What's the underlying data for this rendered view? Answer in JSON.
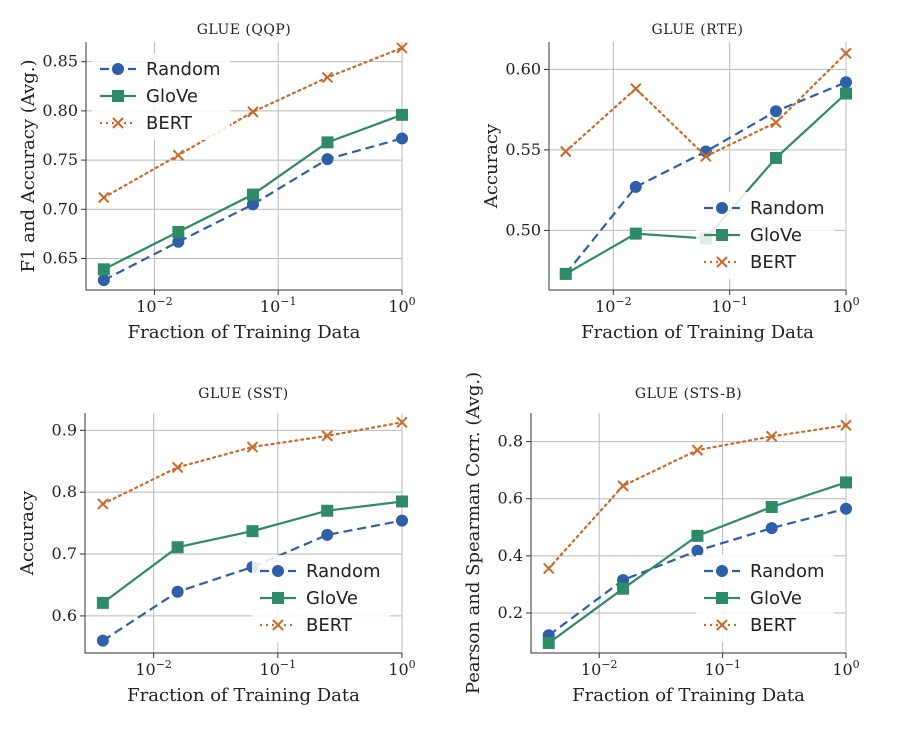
{
  "colors": {
    "random": "#2e5fa8",
    "glove": "#2e8b66",
    "bert": "#c96a2a",
    "grid": "#b9b9b9"
  },
  "chart_data": [
    {
      "type": "line",
      "title": "GLUE (QQP)",
      "xlabel": "Fraction of Training Data",
      "ylabel": "F1 and Accuracy (Avg.)",
      "xscale": "log",
      "xlim": [
        0.0028,
        1.0
      ],
      "ylim": [
        0.618,
        0.87
      ],
      "x": [
        0.0039,
        0.0156,
        0.0625,
        0.25,
        1.0
      ],
      "yticks": [
        0.65,
        0.7,
        0.75,
        0.8,
        0.85
      ],
      "ytick_labels": [
        "0.65",
        "0.70",
        "0.75",
        "0.80",
        "0.85"
      ],
      "xticks": [
        0.01,
        0.1,
        1
      ],
      "xtick_labels": [
        "10^-2",
        "10^-1",
        "10^0"
      ],
      "legend_position": "top-left",
      "series": [
        {
          "name": "Random",
          "key": "random",
          "values": [
            0.628,
            0.667,
            0.705,
            0.751,
            0.772
          ]
        },
        {
          "name": "GloVe",
          "key": "glove",
          "values": [
            0.639,
            0.677,
            0.715,
            0.768,
            0.796
          ]
        },
        {
          "name": "BERT",
          "key": "bert",
          "values": [
            0.712,
            0.755,
            0.799,
            0.834,
            0.864
          ]
        }
      ]
    },
    {
      "type": "line",
      "title": "GLUE (RTE)",
      "xlabel": "Fraction of Training Data",
      "ylabel": "Accuracy",
      "xscale": "log",
      "xlim": [
        0.0028,
        1.0
      ],
      "ylim": [
        0.463,
        0.617
      ],
      "x": [
        0.0039,
        0.0156,
        0.0625,
        0.25,
        1.0
      ],
      "yticks": [
        0.5,
        0.55,
        0.6
      ],
      "ytick_labels": [
        "0.50",
        "0.55",
        "0.60"
      ],
      "xticks": [
        0.01,
        0.1,
        1
      ],
      "xtick_labels": [
        "10^-2",
        "10^-1",
        "10^0"
      ],
      "legend_position": "bottom-right",
      "series": [
        {
          "name": "Random",
          "key": "random",
          "values": [
            0.473,
            0.527,
            0.549,
            0.574,
            0.592
          ]
        },
        {
          "name": "GloVe",
          "key": "glove",
          "values": [
            0.473,
            0.498,
            0.495,
            0.545,
            0.585
          ]
        },
        {
          "name": "BERT",
          "key": "bert",
          "values": [
            0.549,
            0.588,
            0.546,
            0.567,
            0.61
          ]
        }
      ]
    },
    {
      "type": "line",
      "title": "GLUE (SST)",
      "xlabel": "Fraction of Training Data",
      "ylabel": "Accuracy",
      "xscale": "log",
      "xlim": [
        0.0028,
        1.0
      ],
      "ylim": [
        0.54,
        0.928
      ],
      "x": [
        0.0039,
        0.0156,
        0.0625,
        0.25,
        1.0
      ],
      "yticks": [
        0.6,
        0.7,
        0.8,
        0.9
      ],
      "ytick_labels": [
        "0.6",
        "0.7",
        "0.8",
        "0.9"
      ],
      "xticks": [
        0.01,
        0.1,
        1
      ],
      "xtick_labels": [
        "10^-2",
        "10^-1",
        "10^0"
      ],
      "legend_position": "bottom-right",
      "series": [
        {
          "name": "Random",
          "key": "random",
          "values": [
            0.56,
            0.639,
            0.679,
            0.731,
            0.754
          ]
        },
        {
          "name": "GloVe",
          "key": "glove",
          "values": [
            0.621,
            0.711,
            0.737,
            0.77,
            0.785
          ]
        },
        {
          "name": "BERT",
          "key": "bert",
          "values": [
            0.781,
            0.84,
            0.873,
            0.891,
            0.913
          ]
        }
      ]
    },
    {
      "type": "line",
      "title": "GLUE (STS-B)",
      "xlabel": "Fraction of Training Data",
      "ylabel": "Pearson and Spearman Corr. (Avg.)",
      "xscale": "log",
      "xlim": [
        0.0028,
        1.0
      ],
      "ylim": [
        0.06,
        0.9
      ],
      "x": [
        0.0039,
        0.0156,
        0.0625,
        0.25,
        1.0
      ],
      "yticks": [
        0.2,
        0.4,
        0.6,
        0.8
      ],
      "ytick_labels": [
        "0.2",
        "0.4",
        "0.6",
        "0.8"
      ],
      "xticks": [
        0.01,
        0.1,
        1
      ],
      "xtick_labels": [
        "10^-2",
        "10^-1",
        "10^0"
      ],
      "legend_position": "bottom-right",
      "series": [
        {
          "name": "Random",
          "key": "random",
          "values": [
            0.122,
            0.315,
            0.418,
            0.497,
            0.565
          ]
        },
        {
          "name": "GloVe",
          "key": "glove",
          "values": [
            0.095,
            0.285,
            0.47,
            0.571,
            0.657
          ]
        },
        {
          "name": "BERT",
          "key": "bert",
          "values": [
            0.356,
            0.645,
            0.77,
            0.818,
            0.857
          ]
        }
      ]
    }
  ]
}
